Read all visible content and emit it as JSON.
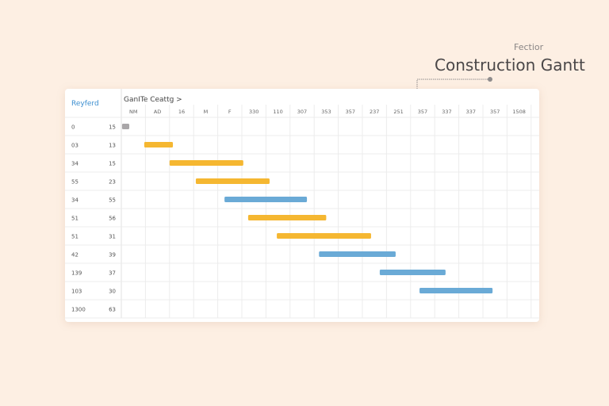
{
  "subtitle": "Fectior",
  "title": "Construction Gantt",
  "chart_data": {
    "type": "gantt",
    "title": "Construction Gantt",
    "left_header": "Reyferd",
    "timeline_header": "GanITe Ceattg >",
    "columns": [
      "NM",
      "AD",
      "16",
      "M",
      "F",
      "330",
      "110",
      "307",
      "353",
      "357",
      "237",
      "251",
      "357",
      "337",
      "337",
      "357",
      "1508"
    ],
    "rows": [
      {
        "id": "0",
        "val": "15",
        "start": 0.03,
        "end": 0.33,
        "color": "#A9A6A8"
      },
      {
        "id": "03",
        "val": "13",
        "start": 0.95,
        "end": 2.14,
        "color": "#F5B731"
      },
      {
        "id": "34",
        "val": "15",
        "start": 2.0,
        "end": 5.06,
        "color": "#F5B731"
      },
      {
        "id": "55",
        "val": "23",
        "start": 3.09,
        "end": 6.15,
        "color": "#F5B731"
      },
      {
        "id": "34",
        "val": "55",
        "start": 4.28,
        "end": 7.7,
        "color": "#6AAAD6"
      },
      {
        "id": "51",
        "val": "56",
        "start": 5.26,
        "end": 8.5,
        "color": "#F5B731"
      },
      {
        "id": "51",
        "val": "31",
        "start": 6.45,
        "end": 10.36,
        "color": "#F5B731"
      },
      {
        "id": "42",
        "val": "39",
        "start": 8.2,
        "end": 11.38,
        "color": "#6AAAD6"
      },
      {
        "id": "139",
        "val": "37",
        "start": 10.72,
        "end": 13.45,
        "color": "#6AAAD6"
      },
      {
        "id": "103",
        "val": "30",
        "start": 12.37,
        "end": 15.4,
        "color": "#6AAAD6"
      },
      {
        "id": "1300",
        "val": "63",
        "start": null,
        "end": null,
        "color": null
      }
    ]
  }
}
